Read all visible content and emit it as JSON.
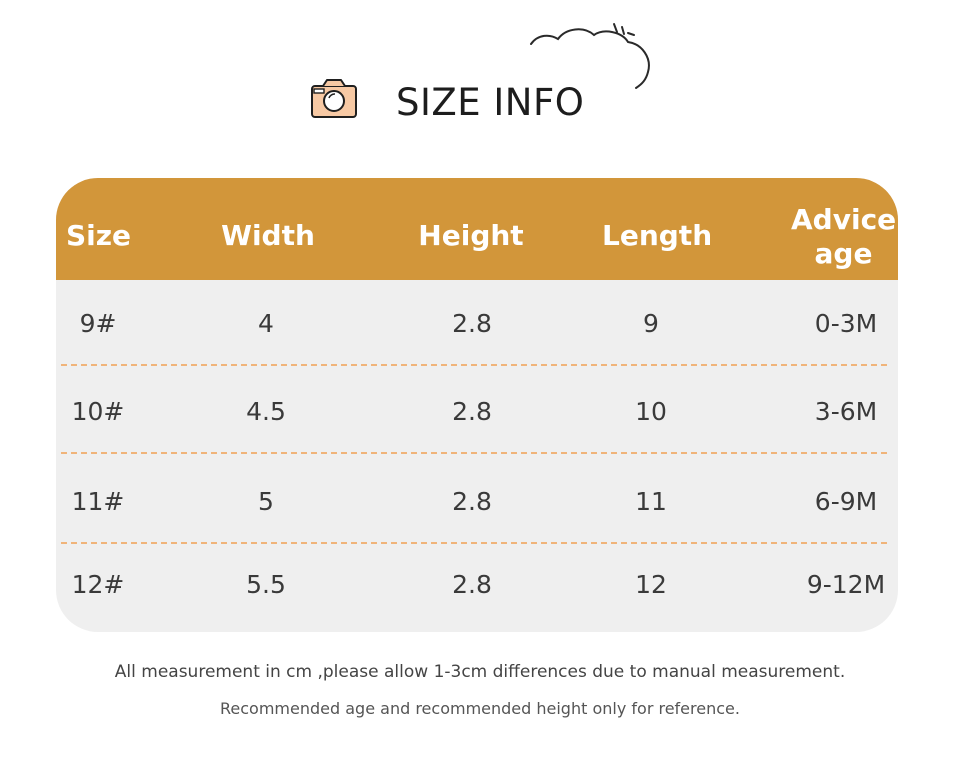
{
  "header": {
    "title": "SIZE INFO",
    "icons": [
      "camera-icon",
      "cloud-icon"
    ]
  },
  "table": {
    "columns": [
      "Size",
      "Width",
      "Height",
      "Length",
      "Advice age"
    ],
    "rows": [
      {
        "size": "9#",
        "width": "4",
        "height": "2.8",
        "length": "9",
        "age": "0-3M"
      },
      {
        "size": "10#",
        "width": "4.5",
        "height": "2.8",
        "length": "10",
        "age": "3-6M"
      },
      {
        "size": "11#",
        "width": "5",
        "height": "2.8",
        "length": "11",
        "age": "6-9M"
      },
      {
        "size": "12#",
        "width": "5.5",
        "height": "2.8",
        "length": "12",
        "age": "9-12M"
      }
    ]
  },
  "notes": {
    "measurement": "All measurement in cm ,please allow 1-3cm differences due to manual measurement.",
    "reference": "Recommended age and recommended height only for reference."
  },
  "colors": {
    "header_band": "#d2963a",
    "table_body": "#efefef",
    "divider": "#f0b47a",
    "camera_accent": "#f7c9a4"
  }
}
